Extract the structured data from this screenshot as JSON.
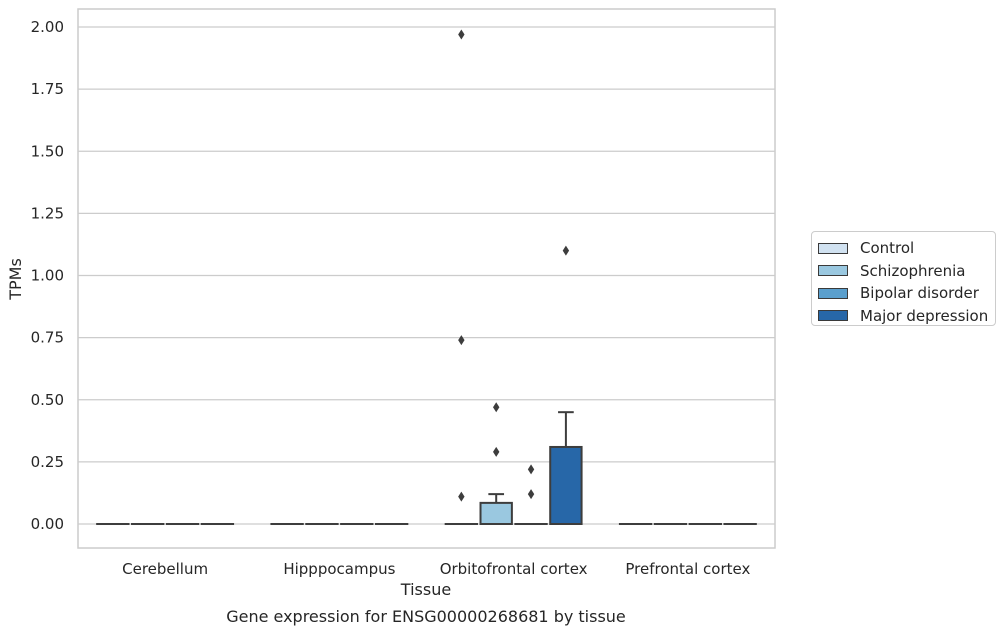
{
  "chart_data": {
    "type": "box",
    "title": "Gene expression for ENSG00000268681 by tissue",
    "xlabel": "Tissue",
    "ylabel": "TPMs",
    "ylim": [
      -0.1,
      2.07
    ],
    "yticks": [
      "0.00",
      "0.25",
      "0.50",
      "0.75",
      "1.00",
      "1.25",
      "1.50",
      "1.75",
      "2.00"
    ],
    "ytick_values": [
      0,
      0.25,
      0.5,
      0.75,
      1.0,
      1.25,
      1.5,
      1.75,
      2.0
    ],
    "grid": true,
    "legend_position": "right",
    "categories": [
      "Cerebellum",
      "Hipppocampus",
      "Orbitofrontal cortex",
      "Prefrontal cortex"
    ],
    "series": [
      {
        "name": "Control",
        "color": "#d1e2f1",
        "boxes": [
          {
            "q1": 0,
            "median": 0,
            "q3": 0,
            "whisker_low": 0,
            "whisker_high": 0,
            "outliers": []
          },
          {
            "q1": 0,
            "median": 0,
            "q3": 0,
            "whisker_low": 0,
            "whisker_high": 0,
            "outliers": []
          },
          {
            "q1": 0,
            "median": 0,
            "q3": 0,
            "whisker_low": 0,
            "whisker_high": 0,
            "outliers": [
              0.11,
              0.74,
              1.97
            ]
          },
          {
            "q1": 0,
            "median": 0,
            "q3": 0,
            "whisker_low": 0,
            "whisker_high": 0,
            "outliers": []
          }
        ]
      },
      {
        "name": "Schizophrenia",
        "color": "#9ac8e0",
        "boxes": [
          {
            "q1": 0,
            "median": 0,
            "q3": 0,
            "whisker_low": 0,
            "whisker_high": 0,
            "outliers": []
          },
          {
            "q1": 0,
            "median": 0,
            "q3": 0,
            "whisker_low": 0,
            "whisker_high": 0,
            "outliers": []
          },
          {
            "q1": 0,
            "median": 0,
            "q3": 0.085,
            "whisker_low": 0,
            "whisker_high": 0.12,
            "outliers": [
              0.29,
              0.47
            ]
          },
          {
            "q1": 0,
            "median": 0,
            "q3": 0,
            "whisker_low": 0,
            "whisker_high": 0,
            "outliers": []
          }
        ]
      },
      {
        "name": "Bipolar disorder",
        "color": "#5a9fcd",
        "boxes": [
          {
            "q1": 0,
            "median": 0,
            "q3": 0,
            "whisker_low": 0,
            "whisker_high": 0,
            "outliers": []
          },
          {
            "q1": 0,
            "median": 0,
            "q3": 0,
            "whisker_low": 0,
            "whisker_high": 0,
            "outliers": []
          },
          {
            "q1": 0,
            "median": 0,
            "q3": 0,
            "whisker_low": 0,
            "whisker_high": 0,
            "outliers": [
              0.12,
              0.22
            ]
          },
          {
            "q1": 0,
            "median": 0,
            "q3": 0,
            "whisker_low": 0,
            "whisker_high": 0,
            "outliers": []
          }
        ]
      },
      {
        "name": "Major depression",
        "color": "#2767a8",
        "boxes": [
          {
            "q1": 0,
            "median": 0,
            "q3": 0,
            "whisker_low": 0,
            "whisker_high": 0,
            "outliers": []
          },
          {
            "q1": 0,
            "median": 0,
            "q3": 0,
            "whisker_low": 0,
            "whisker_high": 0,
            "outliers": []
          },
          {
            "q1": 0,
            "median": 0,
            "q3": 0.31,
            "whisker_low": 0,
            "whisker_high": 0.45,
            "outliers": [
              1.1
            ]
          },
          {
            "q1": 0,
            "median": 0,
            "q3": 0,
            "whisker_low": 0,
            "whisker_high": 0,
            "outliers": []
          }
        ]
      }
    ]
  }
}
